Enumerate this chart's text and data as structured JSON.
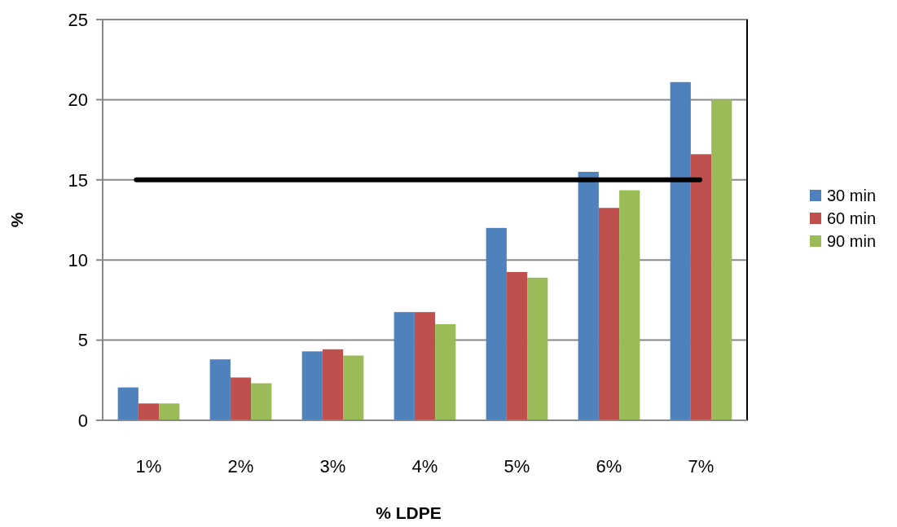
{
  "chart_data": {
    "type": "bar",
    "xlabel": "% LDPE",
    "ylabel": "%",
    "categories": [
      "1%",
      "2%",
      "3%",
      "4%",
      "5%",
      "6%",
      "7%"
    ],
    "series": [
      {
        "name": "30 min",
        "color": "#4f81bd",
        "values": [
          2.05,
          3.8,
          4.3,
          6.75,
          12.0,
          15.5,
          21.1
        ]
      },
      {
        "name": "60 min",
        "color": "#c0504d",
        "values": [
          1.05,
          2.67,
          4.43,
          6.75,
          9.25,
          13.25,
          16.6
        ]
      },
      {
        "name": "90 min",
        "color": "#9bbb59",
        "values": [
          1.05,
          2.31,
          4.04,
          6.0,
          8.9,
          14.35,
          20.0
        ]
      }
    ],
    "ylim": [
      0,
      25
    ],
    "yticks": [
      0,
      5,
      10,
      15,
      20,
      25
    ],
    "grid": "y",
    "legend": "right",
    "ref_lines": [
      {
        "axis": "y",
        "value": 15,
        "color": "#000000",
        "line_style": "solid"
      }
    ]
  }
}
